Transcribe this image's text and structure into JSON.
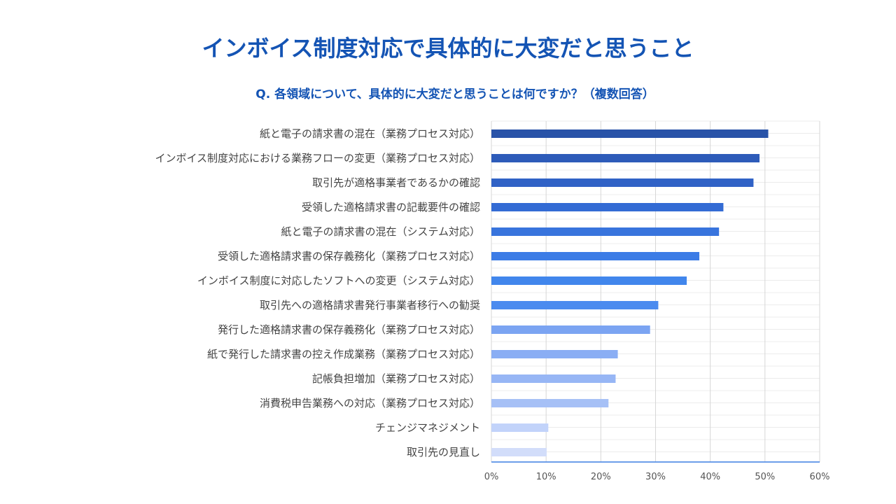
{
  "header": {
    "title": "インボイス制度対応で具体的に大変だと思うこと",
    "subtitle": "Q. 各領域について、具体的に大変だと思うことは何ですか？（複数回答）"
  },
  "chart_data": {
    "type": "bar",
    "orientation": "horizontal",
    "title": "インボイス制度対応で具体的に大変だと思うこと",
    "subtitle": "Q. 各領域について、具体的に大変だと思うことは何ですか？（複数回答）",
    "xlabel": "",
    "ylabel": "",
    "xlim": [
      0,
      60
    ],
    "x_ticks": [
      "0%",
      "10%",
      "20%",
      "30%",
      "40%",
      "50%",
      "60%"
    ],
    "grid": true,
    "categories": [
      "紙と電子の請求書の混在（業務プロセス対応）",
      "インボイス制度対応における業務フローの変更（業務プロセス対応）",
      "取引先が適格事業者であるかの確認",
      "受領した適格請求書の記載要件の確認",
      "紙と電子の請求書の混在（システム対応）",
      "受領した適格請求書の保存義務化（業務プロセス対応）",
      "インボイス制度に対応したソフトへの変更（システム対応）",
      "取引先への適格請求書発行事業者移行への勧奨",
      "発行した適格請求書の保存義務化（業務プロセス対応）",
      "紙で発行した請求書の控え作成業務（業務プロセス対応）",
      "記帳負担増加（業務プロセス対応）",
      "消費税申告業務への対応（業務プロセス対応）",
      "チェンジマネジメント",
      "取引先の見直し"
    ],
    "values": [
      50.6,
      49.0,
      47.9,
      42.4,
      41.6,
      38.0,
      35.7,
      30.5,
      29.0,
      23.1,
      22.7,
      21.4,
      10.4,
      10.1
    ],
    "colors": [
      "#2953a8",
      "#2d5bb9",
      "#3062c6",
      "#336bd4",
      "#3874dd",
      "#3c7ce6",
      "#4186ec",
      "#4b8bef",
      "#7ba4f2",
      "#8aaef4",
      "#97b6f5",
      "#a6c0f6",
      "#c2d3fa",
      "#d2ddfa"
    ]
  }
}
